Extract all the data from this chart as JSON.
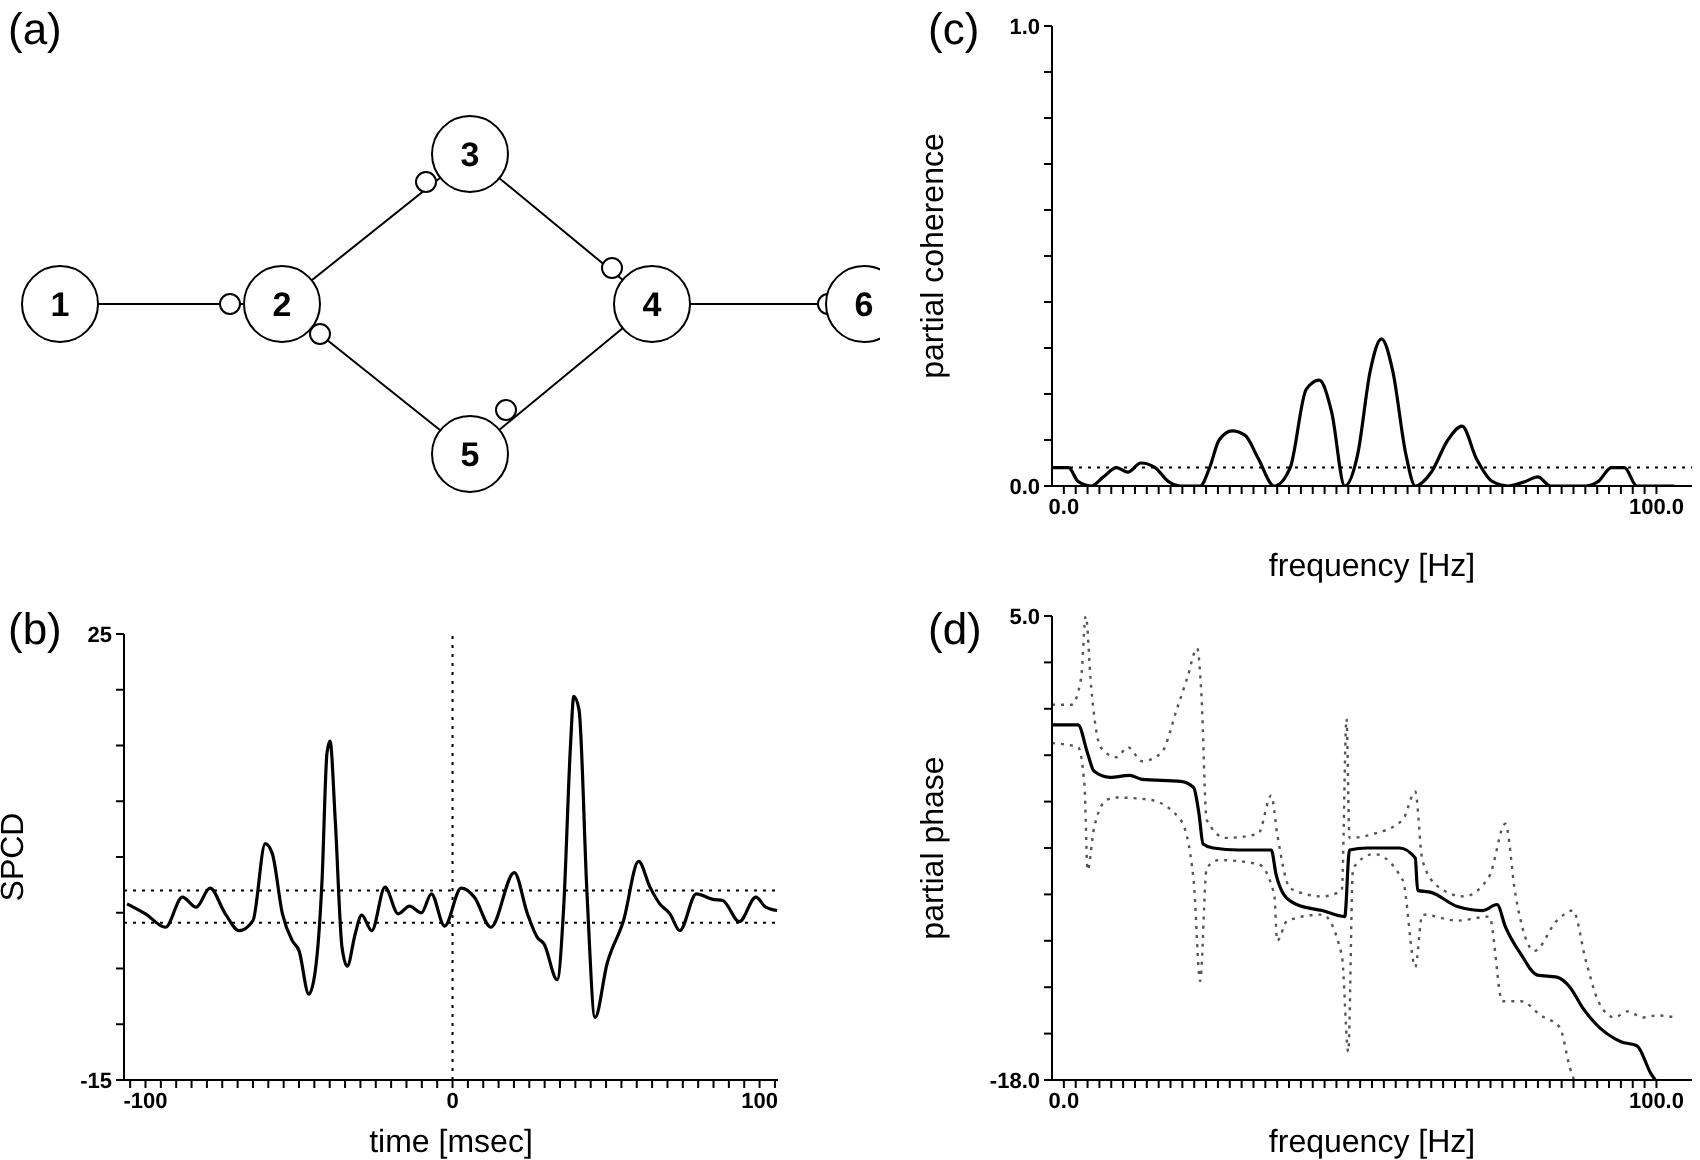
{
  "chart_data": [
    {
      "type": "other",
      "title": "(a)",
      "annotations": [
        "1",
        "2",
        "3",
        "4",
        "5",
        "6"
      ]
    },
    {
      "type": "line",
      "title": "(b)",
      "xlabel": "time [msec]",
      "ylabel": "SPCD",
      "color": "#000000",
      "line_style": "solid",
      "marker": "none",
      "xlim": [
        -107,
        106
      ],
      "ylim": [
        -15,
        25
      ],
      "xticks": [
        {
          "value": -105,
          "label": null
        },
        -100,
        {
          "value": -95,
          "label": null
        },
        {
          "value": -90,
          "label": null
        },
        {
          "value": -85,
          "label": null
        },
        {
          "value": -80,
          "label": null
        },
        {
          "value": -75,
          "label": null
        },
        {
          "value": -70,
          "label": null
        },
        {
          "value": -65,
          "label": null
        },
        {
          "value": -60,
          "label": null
        },
        {
          "value": -55,
          "label": null
        },
        {
          "value": -50,
          "label": null
        },
        {
          "value": -45,
          "label": null
        },
        {
          "value": -40,
          "label": null
        },
        {
          "value": -35,
          "label": null
        },
        {
          "value": -30,
          "label": null
        },
        {
          "value": -25,
          "label": null
        },
        {
          "value": -20,
          "label": null
        },
        {
          "value": -15,
          "label": null
        },
        {
          "value": -10,
          "label": null
        },
        {
          "value": -5,
          "label": null
        },
        0,
        {
          "value": 5,
          "label": null
        },
        {
          "value": 10,
          "label": null
        },
        {
          "value": 15,
          "label": null
        },
        {
          "value": 20,
          "label": null
        },
        {
          "value": 25,
          "label": null
        },
        {
          "value": 30,
          "label": null
        },
        {
          "value": 35,
          "label": null
        },
        {
          "value": 40,
          "label": null
        },
        {
          "value": 45,
          "label": null
        },
        {
          "value": 50,
          "label": null
        },
        {
          "value": 55,
          "label": null
        },
        {
          "value": 60,
          "label": null
        },
        {
          "value": 65,
          "label": null
        },
        {
          "value": 70,
          "label": null
        },
        {
          "value": 75,
          "label": null
        },
        {
          "value": 80,
          "label": null
        },
        {
          "value": 85,
          "label": null
        },
        {
          "value": 90,
          "label": null
        },
        {
          "value": 95,
          "label": null
        },
        100,
        {
          "value": 105,
          "label": null
        }
      ],
      "yticks": [
        -15,
        {
          "value": -10,
          "label": null
        },
        {
          "value": -5,
          "label": null
        },
        {
          "value": 0,
          "label": null
        },
        {
          "value": 5,
          "label": null
        },
        {
          "value": 10,
          "label": null
        },
        {
          "value": 15,
          "label": null
        },
        {
          "value": 20,
          "label": null
        },
        25
      ],
      "ref_lines": [
        {
          "axis": "y",
          "value": 2,
          "line_style": "dotted"
        },
        {
          "axis": "y",
          "value": -0.9,
          "line_style": "dotted"
        },
        {
          "axis": "x",
          "value": 0,
          "line_style": "dotted"
        }
      ],
      "x": [
        -106,
        -100,
        -93.5,
        -88,
        -83.5,
        -79,
        -74,
        -69.5,
        -65,
        -61,
        -58.7,
        -55.4,
        -52.2,
        -50,
        -46.8,
        -44.7,
        -42.5,
        -40.9,
        -39.9,
        -38.2,
        -36,
        -34.3,
        -31.7,
        -29.6,
        -26.3,
        -22,
        -17.7,
        -14,
        -10.1,
        -6.9,
        -2.6,
        2.8,
        7.1,
        12.5,
        20.1,
        24.4,
        27.6,
        29.8,
        34.1,
        36.2,
        38.4,
        39.5,
        41.2,
        43.8,
        46.4,
        50.3,
        55.7,
        60.6,
        64.3,
        67.5,
        70.8,
        74,
        79.4,
        84.8,
        88,
        93.4,
        98.8,
        102,
        105.7
      ],
      "values": [
        0.8,
        -0.1,
        -1.3,
        1.4,
        0.5,
        2.2,
        -0.1,
        -1.6,
        -0.7,
        6.2,
        5.3,
        -0.1,
        -2.5,
        -3.4,
        -7.3,
        -5.2,
        2.9,
        14.3,
        15.4,
        8.3,
        -3.1,
        -4.8,
        -1.9,
        -0.2,
        -1.6,
        2.3,
        -0.1,
        0.6,
        0,
        1.7,
        -1.2,
        2.2,
        1.4,
        -1.3,
        3.6,
        -0.1,
        -2.2,
        -2.8,
        -6.0,
        0.5,
        14.9,
        19.4,
        18.2,
        1.7,
        -9.4,
        -4.6,
        -0.7,
        4.6,
        2.3,
        0.8,
        -0.1,
        -1.6,
        1.7,
        1.2,
        1.1,
        -0.8,
        1.4,
        0.5,
        0.2
      ]
    },
    {
      "type": "line",
      "title": "(c)",
      "xlabel": "frequency [Hz]",
      "ylabel": "partial coherence",
      "color": "#000000",
      "line_style": "solid",
      "marker": "none",
      "xlim": [
        -2,
        106
      ],
      "ylim": [
        0,
        1
      ],
      "xticks": [
        {
          "value": 0,
          "label": "0.0"
        },
        {
          "value": 2,
          "label": null
        },
        {
          "value": 4,
          "label": null
        },
        {
          "value": 6,
          "label": null
        },
        {
          "value": 8,
          "label": null
        },
        {
          "value": 10,
          "label": null
        },
        {
          "value": 12,
          "label": null
        },
        {
          "value": 14,
          "label": null
        },
        {
          "value": 16,
          "label": null
        },
        {
          "value": 18,
          "label": null
        },
        {
          "value": 20,
          "label": null
        },
        {
          "value": 22,
          "label": null
        },
        {
          "value": 24,
          "label": null
        },
        {
          "value": 26,
          "label": null
        },
        {
          "value": 28,
          "label": null
        },
        {
          "value": 30,
          "label": null
        },
        {
          "value": 32,
          "label": null
        },
        {
          "value": 34,
          "label": null
        },
        {
          "value": 36,
          "label": null
        },
        {
          "value": 38,
          "label": null
        },
        {
          "value": 40,
          "label": null
        },
        {
          "value": 42,
          "label": null
        },
        {
          "value": 44,
          "label": null
        },
        {
          "value": 46,
          "label": null
        },
        {
          "value": 48,
          "label": null
        },
        {
          "value": 50,
          "label": null
        },
        {
          "value": 52,
          "label": null
        },
        {
          "value": 54,
          "label": null
        },
        {
          "value": 56,
          "label": null
        },
        {
          "value": 58,
          "label": null
        },
        {
          "value": 60,
          "label": null
        },
        {
          "value": 62,
          "label": null
        },
        {
          "value": 64,
          "label": null
        },
        {
          "value": 66,
          "label": null
        },
        {
          "value": 68,
          "label": null
        },
        {
          "value": 70,
          "label": null
        },
        {
          "value": 72,
          "label": null
        },
        {
          "value": 74,
          "label": null
        },
        {
          "value": 76,
          "label": null
        },
        {
          "value": 78,
          "label": null
        },
        {
          "value": 80,
          "label": null
        },
        {
          "value": 82,
          "label": null
        },
        {
          "value": 84,
          "label": null
        },
        {
          "value": 86,
          "label": null
        },
        {
          "value": 88,
          "label": null
        },
        {
          "value": 90,
          "label": null
        },
        {
          "value": 92,
          "label": null
        },
        {
          "value": 94,
          "label": null
        },
        {
          "value": 96,
          "label": null
        },
        {
          "value": 98,
          "label": null
        },
        {
          "value": 100,
          "label": "100.0"
        }
      ],
      "yticks": [
        {
          "value": 0,
          "label": "0.0"
        },
        {
          "value": 0.1,
          "label": null
        },
        {
          "value": 0.2,
          "label": null
        },
        {
          "value": 0.3,
          "label": null
        },
        {
          "value": 0.4,
          "label": null
        },
        {
          "value": 0.5,
          "label": null
        },
        {
          "value": 0.6,
          "label": null
        },
        {
          "value": 0.7,
          "label": null
        },
        {
          "value": 0.8,
          "label": null
        },
        {
          "value": 0.9,
          "label": null
        },
        {
          "value": 1,
          "label": "1.0"
        }
      ],
      "ref_lines": [
        {
          "axis": "y",
          "value": 0.04,
          "line_style": "dotted"
        }
      ],
      "x": [
        -2,
        0.8,
        2.4,
        4.6,
        6.7,
        8.9,
        10.8,
        13,
        15.4,
        17.6,
        19.7,
        23,
        24.6,
        26.2,
        28.4,
        30.6,
        32.8,
        35.5,
        38.2,
        40.9,
        43.1,
        45.2,
        47.4,
        49.6,
        51.7,
        53.6,
        55.5,
        57.7,
        59.3,
        62,
        64.8,
        67.2,
        69.6,
        72.3,
        75,
        77.9,
        80,
        82.1,
        88.1,
        90.2,
        92.4,
        94.6,
        96.7,
        103
      ],
      "values": [
        0.04,
        0.04,
        0.01,
        0,
        0.02,
        0.04,
        0.03,
        0.05,
        0.04,
        0.01,
        0,
        0,
        0.04,
        0.1,
        0.12,
        0.11,
        0.06,
        0,
        0.04,
        0.21,
        0.23,
        0.16,
        0,
        0.07,
        0.25,
        0.32,
        0.25,
        0.07,
        0,
        0.03,
        0.1,
        0.13,
        0.06,
        0.01,
        0,
        0.01,
        0.02,
        0,
        0,
        0.01,
        0.04,
        0.04,
        0,
        0
      ]
    },
    {
      "type": "line",
      "title": "(d)",
      "xlabel": "frequency [Hz]",
      "ylabel": "partial phase",
      "marker": "none",
      "xlim": [
        -2,
        106
      ],
      "ylim": [
        -18,
        5
      ],
      "xticks": [
        {
          "value": 0,
          "label": "0.0"
        },
        {
          "value": 2,
          "label": null
        },
        {
          "value": 4,
          "label": null
        },
        {
          "value": 6,
          "label": null
        },
        {
          "value": 8,
          "label": null
        },
        {
          "value": 10,
          "label": null
        },
        {
          "value": 12,
          "label": null
        },
        {
          "value": 14,
          "label": null
        },
        {
          "value": 16,
          "label": null
        },
        {
          "value": 18,
          "label": null
        },
        {
          "value": 20,
          "label": null
        },
        {
          "value": 22,
          "label": null
        },
        {
          "value": 24,
          "label": null
        },
        {
          "value": 26,
          "label": null
        },
        {
          "value": 28,
          "label": null
        },
        {
          "value": 30,
          "label": null
        },
        {
          "value": 32,
          "label": null
        },
        {
          "value": 34,
          "label": null
        },
        {
          "value": 36,
          "label": null
        },
        {
          "value": 38,
          "label": null
        },
        {
          "value": 40,
          "label": null
        },
        {
          "value": 42,
          "label": null
        },
        {
          "value": 44,
          "label": null
        },
        {
          "value": 46,
          "label": null
        },
        {
          "value": 48,
          "label": null
        },
        {
          "value": 50,
          "label": null
        },
        {
          "value": 52,
          "label": null
        },
        {
          "value": 54,
          "label": null
        },
        {
          "value": 56,
          "label": null
        },
        {
          "value": 58,
          "label": null
        },
        {
          "value": 60,
          "label": null
        },
        {
          "value": 62,
          "label": null
        },
        {
          "value": 64,
          "label": null
        },
        {
          "value": 66,
          "label": null
        },
        {
          "value": 68,
          "label": null
        },
        {
          "value": 70,
          "label": null
        },
        {
          "value": 72,
          "label": null
        },
        {
          "value": 74,
          "label": null
        },
        {
          "value": 76,
          "label": null
        },
        {
          "value": 78,
          "label": null
        },
        {
          "value": 80,
          "label": null
        },
        {
          "value": 82,
          "label": null
        },
        {
          "value": 84,
          "label": null
        },
        {
          "value": 86,
          "label": null
        },
        {
          "value": 88,
          "label": null
        },
        {
          "value": 90,
          "label": null
        },
        {
          "value": 92,
          "label": null
        },
        {
          "value": 94,
          "label": null
        },
        {
          "value": 96,
          "label": null
        },
        {
          "value": 98,
          "label": null
        },
        {
          "value": 100,
          "label": "100.0"
        }
      ],
      "yticks": [
        {
          "value": -18,
          "label": "-18.0"
        },
        {
          "value": -15.7,
          "label": null
        },
        {
          "value": -13.4,
          "label": null
        },
        {
          "value": -11.1,
          "label": null
        },
        {
          "value": -8.8,
          "label": null
        },
        {
          "value": -6.5,
          "label": null
        },
        {
          "value": -4.2,
          "label": null
        },
        {
          "value": -1.9,
          "label": null
        },
        {
          "value": 0.4,
          "label": null
        },
        {
          "value": 2.7,
          "label": null
        },
        {
          "value": 5,
          "label": "5.0"
        }
      ],
      "series": [
        {
          "color": "#000000",
          "line_style": "solid",
          "x": [
            -2,
            2.4,
            4,
            5.1,
            7.8,
            11.1,
            13.2,
            19.7,
            21.9,
            22.8,
            23.5,
            25.2,
            29.5,
            35,
            35.8,
            37.1,
            39.3,
            43.6,
            47.4,
            48.2,
            51.2,
            56.6,
            59.3,
            59.7,
            62,
            66.4,
            70.7,
            73.1,
            74.5,
            77.2,
            79.9,
            83.2,
            85.4,
            87.5,
            89.7,
            94,
            96.7,
            99.1,
            99.8
          ],
          "values": [
            -0.4,
            -0.4,
            -1.8,
            -2.7,
            -3.0,
            -2.9,
            -3.1,
            -3.2,
            -3.5,
            -4.8,
            -6.3,
            -6.5,
            -6.6,
            -6.6,
            -7.8,
            -8.8,
            -9.3,
            -9.6,
            -9.9,
            -6.6,
            -6.5,
            -6.5,
            -7.0,
            -8.6,
            -8.7,
            -9.4,
            -9.6,
            -9.3,
            -10.4,
            -11.8,
            -12.8,
            -12.9,
            -13.4,
            -14.4,
            -15.2,
            -16.1,
            -16.3,
            -17.7,
            -18
          ]
        },
        {
          "color": "#555555",
          "line_style": "dotted",
          "x": [
            -2,
            1.3,
            2.9,
            3.7,
            4.6,
            6.2,
            8.9,
            10.8,
            13.2,
            16.4,
            19.2,
            20.8,
            22.5,
            23.2,
            24.1,
            27.3,
            32.8,
            35,
            36,
            38.2,
            43.6,
            46.9,
            47.7,
            48.2,
            52.3,
            57.2,
            59.3,
            60.5,
            63.1,
            67.5,
            71.8,
            74.5,
            76.2,
            79.4,
            83.2,
            85.9,
            88.1,
            90.2,
            92.9,
            95.1,
            97.8,
            100,
            103.3
          ],
          "values": [
            0.6,
            0.6,
            1.9,
            5.0,
            1.5,
            -1.5,
            -2.0,
            -1.5,
            -2.2,
            -1.8,
            0.5,
            1.9,
            3.4,
            1.2,
            -5.1,
            -6.0,
            -5.8,
            -3.9,
            -5.8,
            -8.5,
            -8.9,
            -8.6,
            -0.1,
            -6.0,
            -5.8,
            -5.1,
            -3.7,
            -7.1,
            -8.4,
            -8.9,
            -7.9,
            -5.3,
            -8.8,
            -11.6,
            -10.1,
            -9.6,
            -12.1,
            -14.1,
            -14.9,
            -14.6,
            -14.9,
            -14.8,
            -14.9
          ]
        },
        {
          "color": "#555555",
          "line_style": "dotted",
          "x": [
            -2,
            2.4,
            3.5,
            4,
            5.1,
            7.3,
            8.9,
            14.3,
            19.7,
            21.9,
            23,
            24.1,
            26.2,
            32.8,
            35.5,
            36,
            37.7,
            43.6,
            46.9,
            48,
            48.8,
            52.3,
            57.2,
            59.3,
            60.5,
            66.4,
            71.8,
            74,
            77.2,
            80.5,
            83.7,
            85.4,
            86.1
          ],
          "values": [
            -1.3,
            -1.5,
            -3.5,
            -7.6,
            -5.5,
            -4.1,
            -4.0,
            -4.1,
            -5.1,
            -8.1,
            -13.1,
            -7.5,
            -7.1,
            -7.3,
            -8.8,
            -11.1,
            -10.1,
            -9.8,
            -11.8,
            -16.6,
            -7.5,
            -6.8,
            -8.1,
            -12.4,
            -9.8,
            -10.1,
            -9.9,
            -14.1,
            -14.1,
            -14.8,
            -15.4,
            -17.4,
            -18
          ]
        }
      ]
    }
  ]
}
